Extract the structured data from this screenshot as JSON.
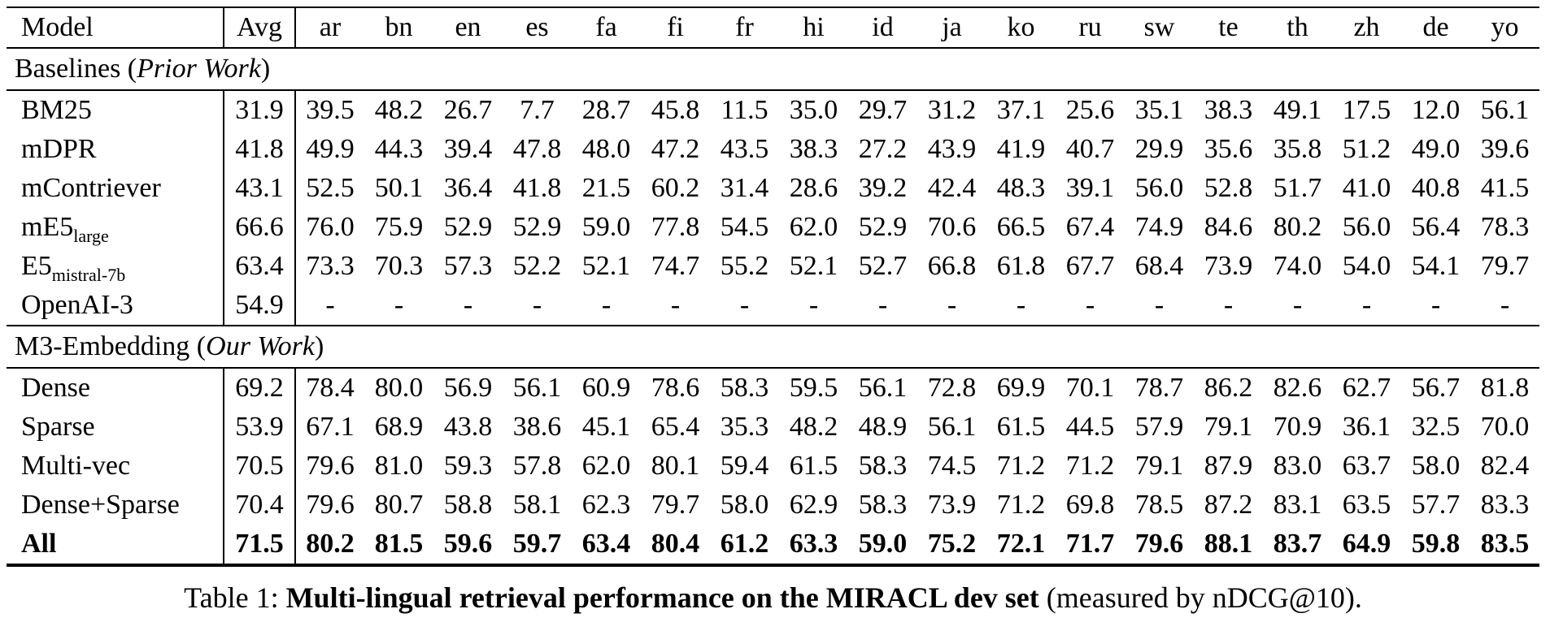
{
  "table": {
    "columns": [
      "Model",
      "Avg",
      "ar",
      "bn",
      "en",
      "es",
      "fa",
      "fi",
      "fr",
      "hi",
      "id",
      "ja",
      "ko",
      "ru",
      "sw",
      "te",
      "th",
      "zh",
      "de",
      "yo"
    ],
    "sections": [
      {
        "name": "baselines",
        "prefix": "Baselines (",
        "italic": "Prior Work",
        "suffix": ")",
        "rows": [
          {
            "model": "BM25",
            "subscript": "",
            "avg": "31.9",
            "bold": false,
            "values": [
              "39.5",
              "48.2",
              "26.7",
              "7.7",
              "28.7",
              "45.8",
              "11.5",
              "35.0",
              "29.7",
              "31.2",
              "37.1",
              "25.6",
              "35.1",
              "38.3",
              "49.1",
              "17.5",
              "12.0",
              "56.1"
            ]
          },
          {
            "model": "mDPR",
            "subscript": "",
            "avg": "41.8",
            "bold": false,
            "values": [
              "49.9",
              "44.3",
              "39.4",
              "47.8",
              "48.0",
              "47.2",
              "43.5",
              "38.3",
              "27.2",
              "43.9",
              "41.9",
              "40.7",
              "29.9",
              "35.6",
              "35.8",
              "51.2",
              "49.0",
              "39.6"
            ]
          },
          {
            "model": "mContriever",
            "subscript": "",
            "avg": "43.1",
            "bold": false,
            "values": [
              "52.5",
              "50.1",
              "36.4",
              "41.8",
              "21.5",
              "60.2",
              "31.4",
              "28.6",
              "39.2",
              "42.4",
              "48.3",
              "39.1",
              "56.0",
              "52.8",
              "51.7",
              "41.0",
              "40.8",
              "41.5"
            ]
          },
          {
            "model": "mE5",
            "subscript": "large",
            "avg": "66.6",
            "bold": false,
            "values": [
              "76.0",
              "75.9",
              "52.9",
              "52.9",
              "59.0",
              "77.8",
              "54.5",
              "62.0",
              "52.9",
              "70.6",
              "66.5",
              "67.4",
              "74.9",
              "84.6",
              "80.2",
              "56.0",
              "56.4",
              "78.3"
            ]
          },
          {
            "model": "E5",
            "subscript": "mistral-7b",
            "avg": "63.4",
            "bold": false,
            "values": [
              "73.3",
              "70.3",
              "57.3",
              "52.2",
              "52.1",
              "74.7",
              "55.2",
              "52.1",
              "52.7",
              "66.8",
              "61.8",
              "67.7",
              "68.4",
              "73.9",
              "74.0",
              "54.0",
              "54.1",
              "79.7"
            ]
          },
          {
            "model": "OpenAI-3",
            "subscript": "",
            "avg": "54.9",
            "bold": false,
            "values": [
              "-",
              "-",
              "-",
              "-",
              "-",
              "-",
              "-",
              "-",
              "-",
              "-",
              "-",
              "-",
              "-",
              "-",
              "-",
              "-",
              "-",
              "-"
            ]
          }
        ]
      },
      {
        "name": "m3-embedding",
        "prefix": "M3-Embedding (",
        "italic": "Our Work",
        "suffix": ")",
        "rows": [
          {
            "model": "Dense",
            "subscript": "",
            "avg": "69.2",
            "bold": false,
            "values": [
              "78.4",
              "80.0",
              "56.9",
              "56.1",
              "60.9",
              "78.6",
              "58.3",
              "59.5",
              "56.1",
              "72.8",
              "69.9",
              "70.1",
              "78.7",
              "86.2",
              "82.6",
              "62.7",
              "56.7",
              "81.8"
            ]
          },
          {
            "model": "Sparse",
            "subscript": "",
            "avg": "53.9",
            "bold": false,
            "values": [
              "67.1",
              "68.9",
              "43.8",
              "38.6",
              "45.1",
              "65.4",
              "35.3",
              "48.2",
              "48.9",
              "56.1",
              "61.5",
              "44.5",
              "57.9",
              "79.1",
              "70.9",
              "36.1",
              "32.5",
              "70.0"
            ]
          },
          {
            "model": "Multi-vec",
            "subscript": "",
            "avg": "70.5",
            "bold": false,
            "values": [
              "79.6",
              "81.0",
              "59.3",
              "57.8",
              "62.0",
              "80.1",
              "59.4",
              "61.5",
              "58.3",
              "74.5",
              "71.2",
              "71.2",
              "79.1",
              "87.9",
              "83.0",
              "63.7",
              "58.0",
              "82.4"
            ]
          },
          {
            "model": "Dense+Sparse",
            "subscript": "",
            "avg": "70.4",
            "bold": false,
            "values": [
              "79.6",
              "80.7",
              "58.8",
              "58.1",
              "62.3",
              "79.7",
              "58.0",
              "62.9",
              "58.3",
              "73.9",
              "71.2",
              "69.8",
              "78.5",
              "87.2",
              "83.1",
              "63.5",
              "57.7",
              "83.3"
            ]
          },
          {
            "model": "All",
            "subscript": "",
            "avg": "71.5",
            "bold": true,
            "values": [
              "80.2",
              "81.5",
              "59.6",
              "59.7",
              "63.4",
              "80.4",
              "61.2",
              "63.3",
              "59.0",
              "75.2",
              "72.1",
              "71.7",
              "79.6",
              "88.1",
              "83.7",
              "64.9",
              "59.8",
              "83.5"
            ]
          }
        ]
      }
    ]
  },
  "caption": {
    "prefix": "Table 1: ",
    "bold": "Multi-lingual retrieval performance on the MIRACL dev set",
    "suffix": " (measured by nDCG@10)."
  }
}
